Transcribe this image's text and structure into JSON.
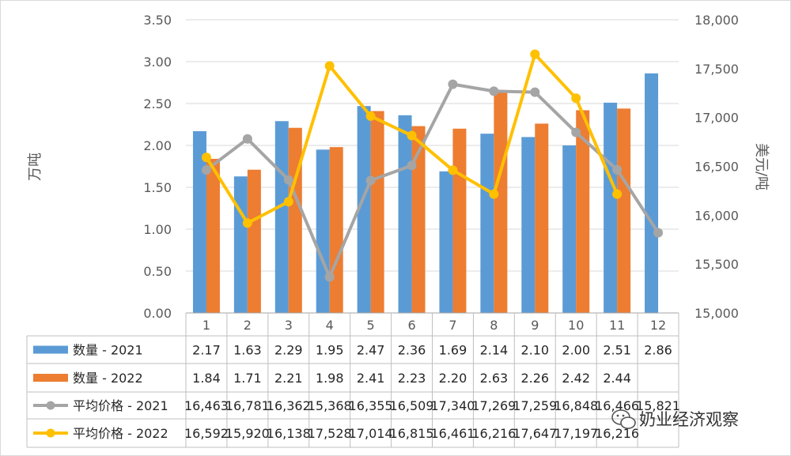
{
  "chart_data": {
    "type": "bar+line",
    "categories": [
      "1",
      "2",
      "3",
      "4",
      "5",
      "6",
      "7",
      "8",
      "9",
      "10",
      "11",
      "12"
    ],
    "series": [
      {
        "name": "数量 - 2021",
        "kind": "bar",
        "axis": "left",
        "color": "#5B9BD5",
        "values": [
          2.17,
          1.63,
          2.29,
          1.95,
          2.47,
          2.36,
          1.69,
          2.14,
          2.1,
          2.0,
          2.51,
          2.86
        ],
        "labels": [
          "2.17",
          "1.63",
          "2.29",
          "1.95",
          "2.47",
          "2.36",
          "1.69",
          "2.14",
          "2.10",
          "2.00",
          "2.51",
          "2.86"
        ]
      },
      {
        "name": "数量 - 2022",
        "kind": "bar",
        "axis": "left",
        "color": "#ED7D31",
        "values": [
          1.84,
          1.71,
          2.21,
          1.98,
          2.41,
          2.23,
          2.2,
          2.63,
          2.26,
          2.42,
          2.44,
          null
        ],
        "labels": [
          "1.84",
          "1.71",
          "2.21",
          "1.98",
          "2.41",
          "2.23",
          "2.20",
          "2.63",
          "2.26",
          "2.42",
          "2.44",
          ""
        ]
      },
      {
        "name": "平均价格 - 2021",
        "kind": "line",
        "axis": "right",
        "color": "#A5A5A5",
        "values": [
          16463,
          16781,
          16362,
          15368,
          16355,
          16509,
          17340,
          17269,
          17259,
          16848,
          16466,
          15821
        ],
        "labels": [
          "16,463",
          "16,781",
          "16,362",
          "15,368",
          "16,355",
          "16,509",
          "17,340",
          "17,269",
          "17,259",
          "16,848",
          "16,466",
          "15,821"
        ]
      },
      {
        "name": "平均价格 - 2022",
        "kind": "line",
        "axis": "right",
        "color": "#FFC000",
        "values": [
          16592,
          15920,
          16138,
          17528,
          17014,
          16815,
          16461,
          16216,
          17647,
          17197,
          16216,
          null
        ],
        "labels": [
          "16,592",
          "15,920",
          "16,138",
          "17,528",
          "17,014",
          "16,815",
          "16,461",
          "16,216",
          "17,647",
          "17,197",
          "16,216",
          ""
        ]
      }
    ],
    "y_left": {
      "label": "万吨",
      "min": 0,
      "max": 3.5,
      "ticks": [
        "0.00",
        "0.50",
        "1.00",
        "1.50",
        "2.00",
        "2.50",
        "3.00",
        "3.50"
      ]
    },
    "y_right": {
      "label": "美元/吨",
      "min": 15000,
      "max": 18000,
      "ticks": [
        "15,000",
        "15,500",
        "16,000",
        "16,500",
        "17,000",
        "17,500",
        "18,000"
      ]
    },
    "grid": true,
    "legend": "data-table"
  },
  "watermark": "奶业经济观察"
}
